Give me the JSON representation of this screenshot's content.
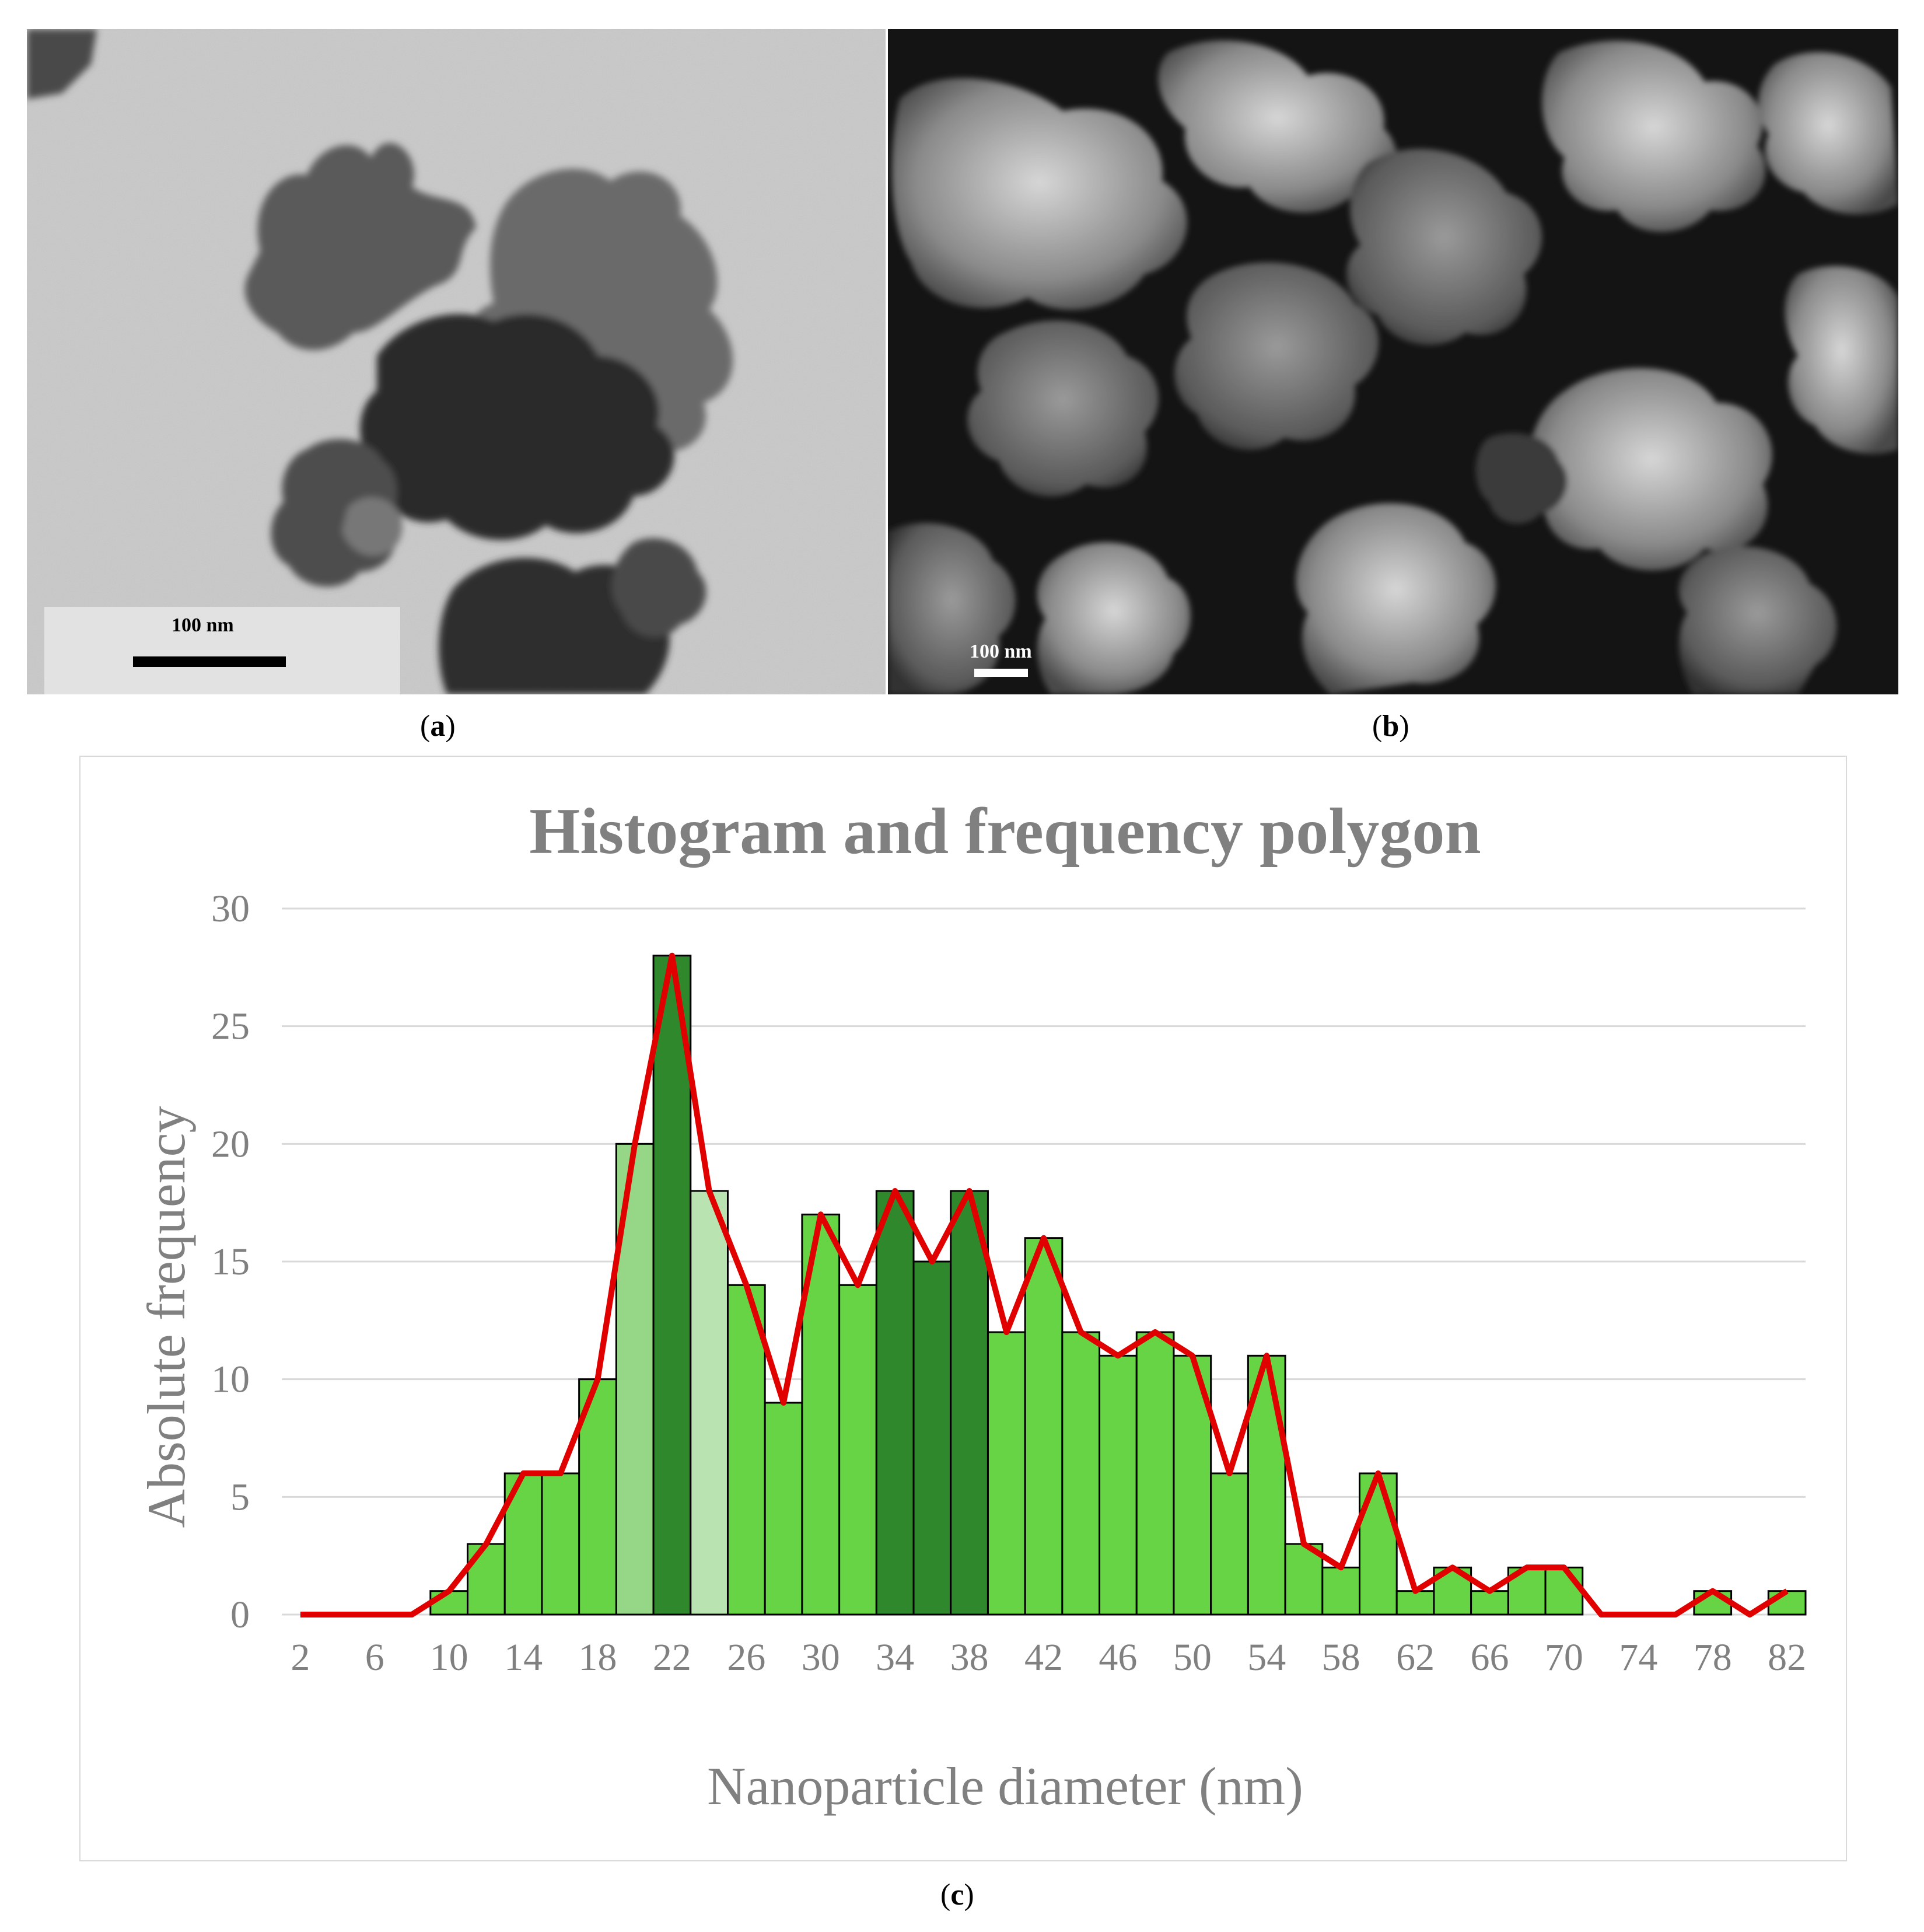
{
  "panels": {
    "a": {
      "caption_letter": "a",
      "scale_label": "100 nm"
    },
    "b": {
      "caption_letter": "b",
      "scale_label": "100 nm"
    },
    "c": {
      "caption_letter": "c"
    }
  },
  "colors": {
    "bar_default": "#66d444",
    "bar_dark": "#2f882b",
    "bar_light": "#95d787",
    "bar_lightest": "#b9e3b0",
    "bar_stroke": "#000000",
    "polygon_line": "#e00000",
    "grid": "#d9d9d9",
    "text": "#808080"
  },
  "chart_data": {
    "type": "bar",
    "title": "Histogram and frequency polygon",
    "xlabel": "Nanoparticle diameter (nm)",
    "ylabel": "Absolute frequency",
    "ylim": [
      0,
      30
    ],
    "yticks": [
      0,
      5,
      10,
      15,
      20,
      25,
      30
    ],
    "xticks": [
      2,
      6,
      10,
      14,
      18,
      22,
      26,
      30,
      34,
      38,
      42,
      46,
      50,
      54,
      58,
      62,
      66,
      70,
      74,
      78,
      82
    ],
    "categories": [
      2,
      4,
      6,
      8,
      10,
      12,
      14,
      16,
      18,
      20,
      22,
      24,
      26,
      28,
      30,
      32,
      34,
      36,
      38,
      40,
      42,
      44,
      46,
      48,
      50,
      52,
      54,
      56,
      58,
      60,
      62,
      64,
      66,
      68,
      70,
      72,
      74,
      76,
      78,
      80,
      82
    ],
    "values": [
      0,
      0,
      0,
      0,
      1,
      3,
      6,
      6,
      10,
      20,
      28,
      18,
      14,
      9,
      17,
      14,
      18,
      15,
      18,
      12,
      16,
      12,
      11,
      12,
      11,
      6,
      11,
      3,
      2,
      6,
      1,
      2,
      1,
      2,
      2,
      0,
      0,
      0,
      1,
      0,
      1
    ],
    "bar_shades": [
      "default",
      "default",
      "default",
      "default",
      "default",
      "default",
      "default",
      "default",
      "default",
      "light",
      "dark",
      "lightest",
      "default",
      "default",
      "default",
      "default",
      "dark",
      "dark",
      "dark",
      "default",
      "default",
      "default",
      "default",
      "default",
      "default",
      "default",
      "default",
      "default",
      "default",
      "default",
      "default",
      "default",
      "default",
      "default",
      "default",
      "default",
      "default",
      "default",
      "default",
      "default",
      "default"
    ],
    "series": [
      {
        "type": "bar",
        "values_ref": "values"
      },
      {
        "type": "line",
        "values_ref": "values",
        "color": "#e00000"
      }
    ],
    "grid": true,
    "legend": "none"
  }
}
